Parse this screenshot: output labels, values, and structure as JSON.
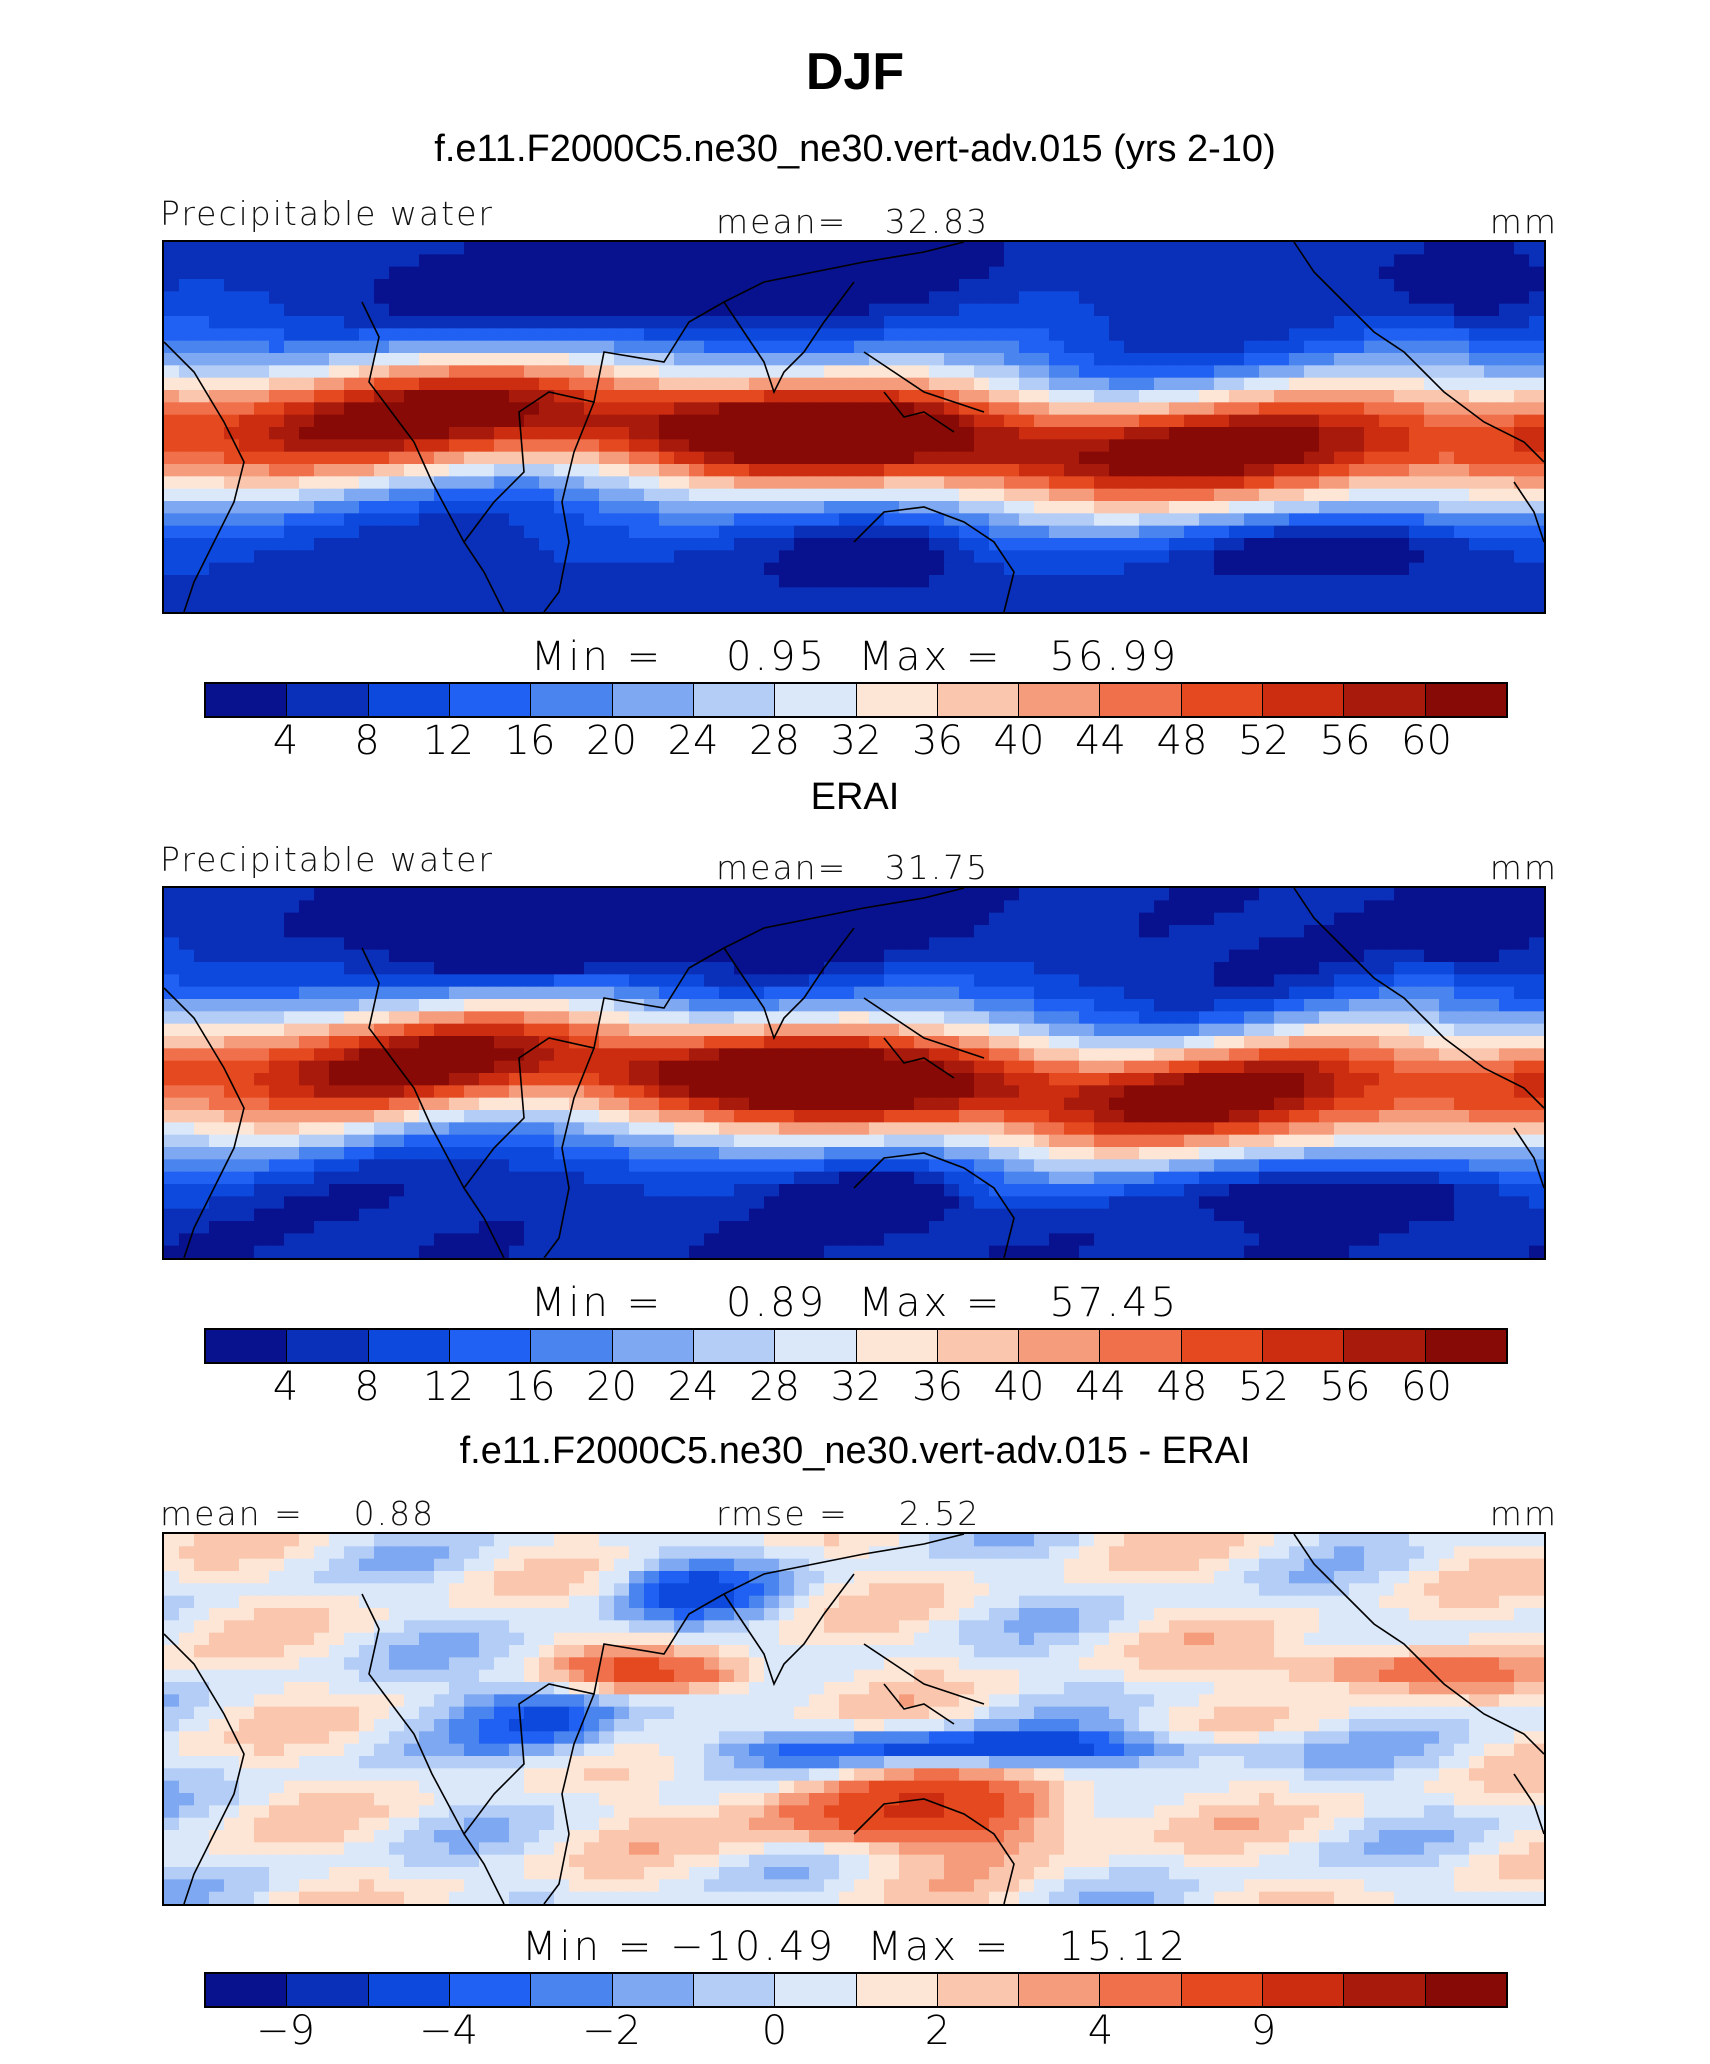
{
  "figure": {
    "title": "DJF"
  },
  "colors": {
    "palette": [
      "#08128f",
      "#0a2fb8",
      "#0d49dd",
      "#2060f2",
      "#4a84ef",
      "#7ea8f2",
      "#b3cdf6",
      "#dbe8fa",
      "#fde6d6",
      "#fac6ad",
      "#f59c7c",
      "#f0704c",
      "#e5491f",
      "#cc2d10",
      "#a81a0c",
      "#870a07"
    ],
    "coast": "#000000"
  },
  "panels": [
    {
      "title": "f.e11.F2000C5.ne30_ne30.vert-adv.015 (yrs 2-10)",
      "left_label": "Precipitable water",
      "center_label": "mean=   32.83",
      "right_label": "mm",
      "minmax": "Min =    0.95  Max =   56.99",
      "ticks": [
        "4",
        "8",
        "12",
        "16",
        "20",
        "24",
        "28",
        "32",
        "36",
        "40",
        "44",
        "48",
        "52",
        "56",
        "60"
      ],
      "field": "model"
    },
    {
      "title": "ERAI",
      "left_label": "Precipitable water",
      "center_label": "mean=   31.75",
      "right_label": "mm",
      "minmax": "Min =    0.89  Max =   57.45",
      "ticks": [
        "4",
        "8",
        "12",
        "16",
        "20",
        "24",
        "28",
        "32",
        "36",
        "40",
        "44",
        "48",
        "52",
        "56",
        "60"
      ],
      "field": "obs"
    },
    {
      "title": "f.e11.F2000C5.ne30_ne30.vert-adv.015 - ERAI",
      "left_label": "mean =    0.88",
      "center_label": "rmse =    2.52",
      "right_label": "mm",
      "minmax": "Min = −10.49  Max =   15.12",
      "ticks": [
        "−9",
        "",
        "−4",
        "",
        "−2",
        "",
        "0",
        "",
        "2",
        "",
        "4",
        "",
        "9",
        "",
        ""
      ],
      "field": "diff"
    }
  ]
}
